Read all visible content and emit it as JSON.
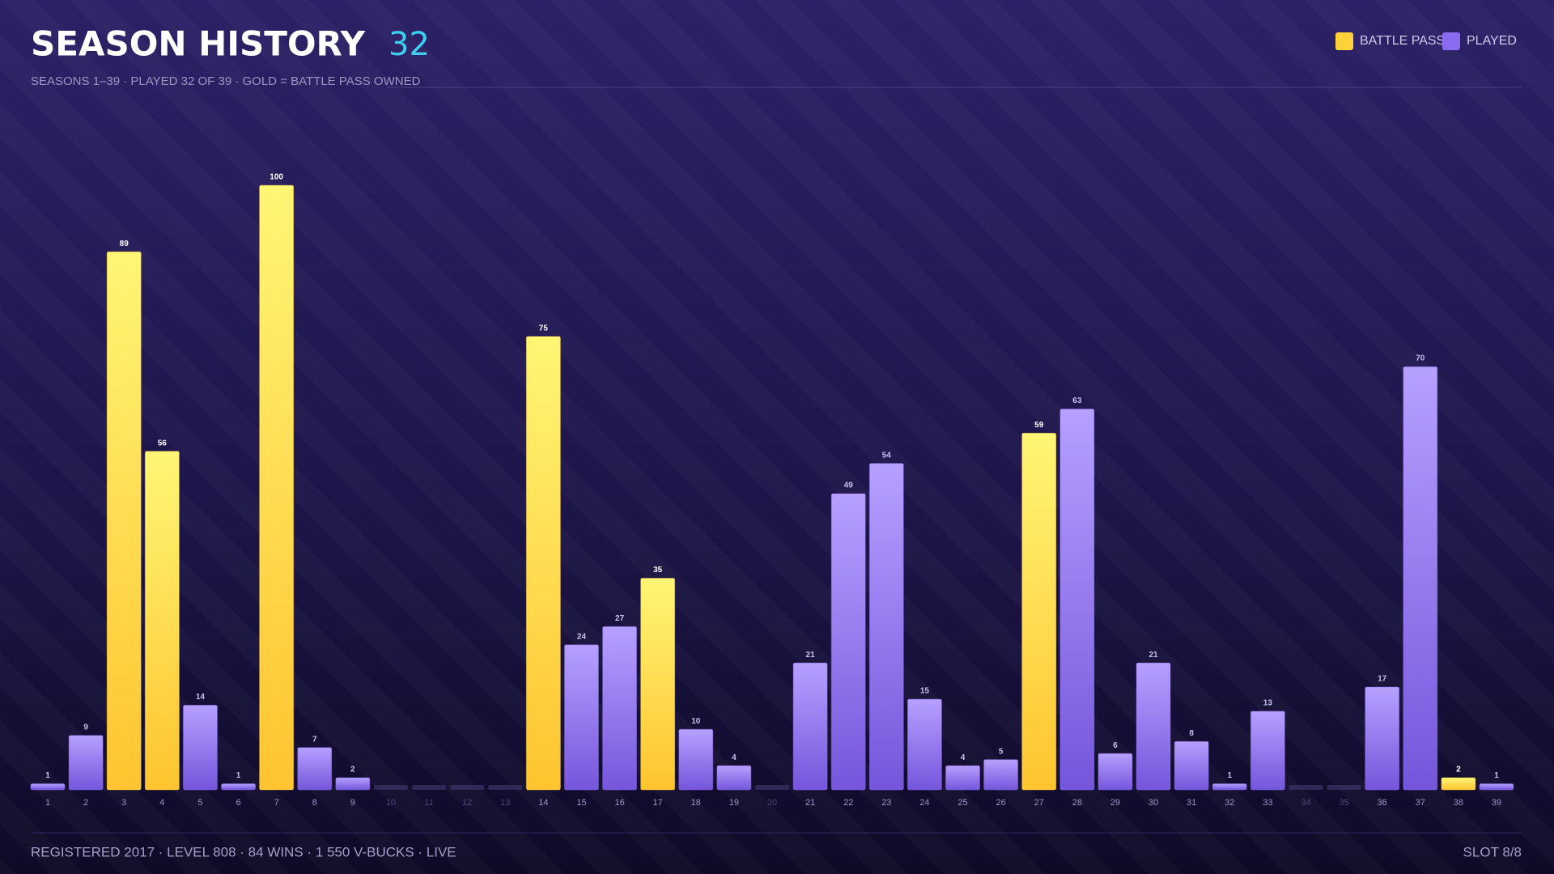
{
  "header": {
    "title": "SEASON HISTORY",
    "count": 32,
    "subtitle": "SEASONS 1–39 · PLAYED 32 OF 39 · GOLD = BATTLE PASS OWNED"
  },
  "chart_data": {
    "type": "bar",
    "categories": [
      "1",
      "2",
      "3",
      "4",
      "5",
      "6",
      "7",
      "8",
      "9",
      "10",
      "11",
      "12",
      "13",
      "14",
      "15",
      "16",
      "17",
      "18",
      "19",
      "20",
      "21",
      "22",
      "23",
      "24",
      "25",
      "26",
      "27",
      "28",
      "29",
      "30",
      "31",
      "32",
      "33",
      "34",
      "35",
      "36",
      "37",
      "38",
      "39"
    ],
    "series": [
      {
        "name": "BATTLE PASS",
        "color": "#ffd23c",
        "values": [
          null,
          null,
          89,
          56,
          null,
          null,
          100,
          null,
          null,
          null,
          null,
          null,
          null,
          75,
          null,
          null,
          35,
          null,
          null,
          null,
          null,
          null,
          null,
          null,
          null,
          null,
          59,
          null,
          null,
          null,
          null,
          null,
          null,
          null,
          null,
          null,
          null,
          2,
          null
        ]
      },
      {
        "name": "PLAYED",
        "color": "#8a6cf0",
        "values": [
          1,
          9,
          null,
          null,
          14,
          1,
          null,
          7,
          2,
          null,
          null,
          null,
          null,
          null,
          24,
          27,
          null,
          10,
          4,
          null,
          21,
          49,
          54,
          15,
          4,
          5,
          null,
          63,
          6,
          21,
          8,
          1,
          13,
          null,
          null,
          17,
          70,
          null,
          1
        ]
      }
    ]
  },
  "footer": {
    "left": "REGISTERED 2017 · LEVEL 808 · 84 WINS · 1 550 V-BUCKS · LIVE",
    "right": "SLOT 8/8"
  }
}
